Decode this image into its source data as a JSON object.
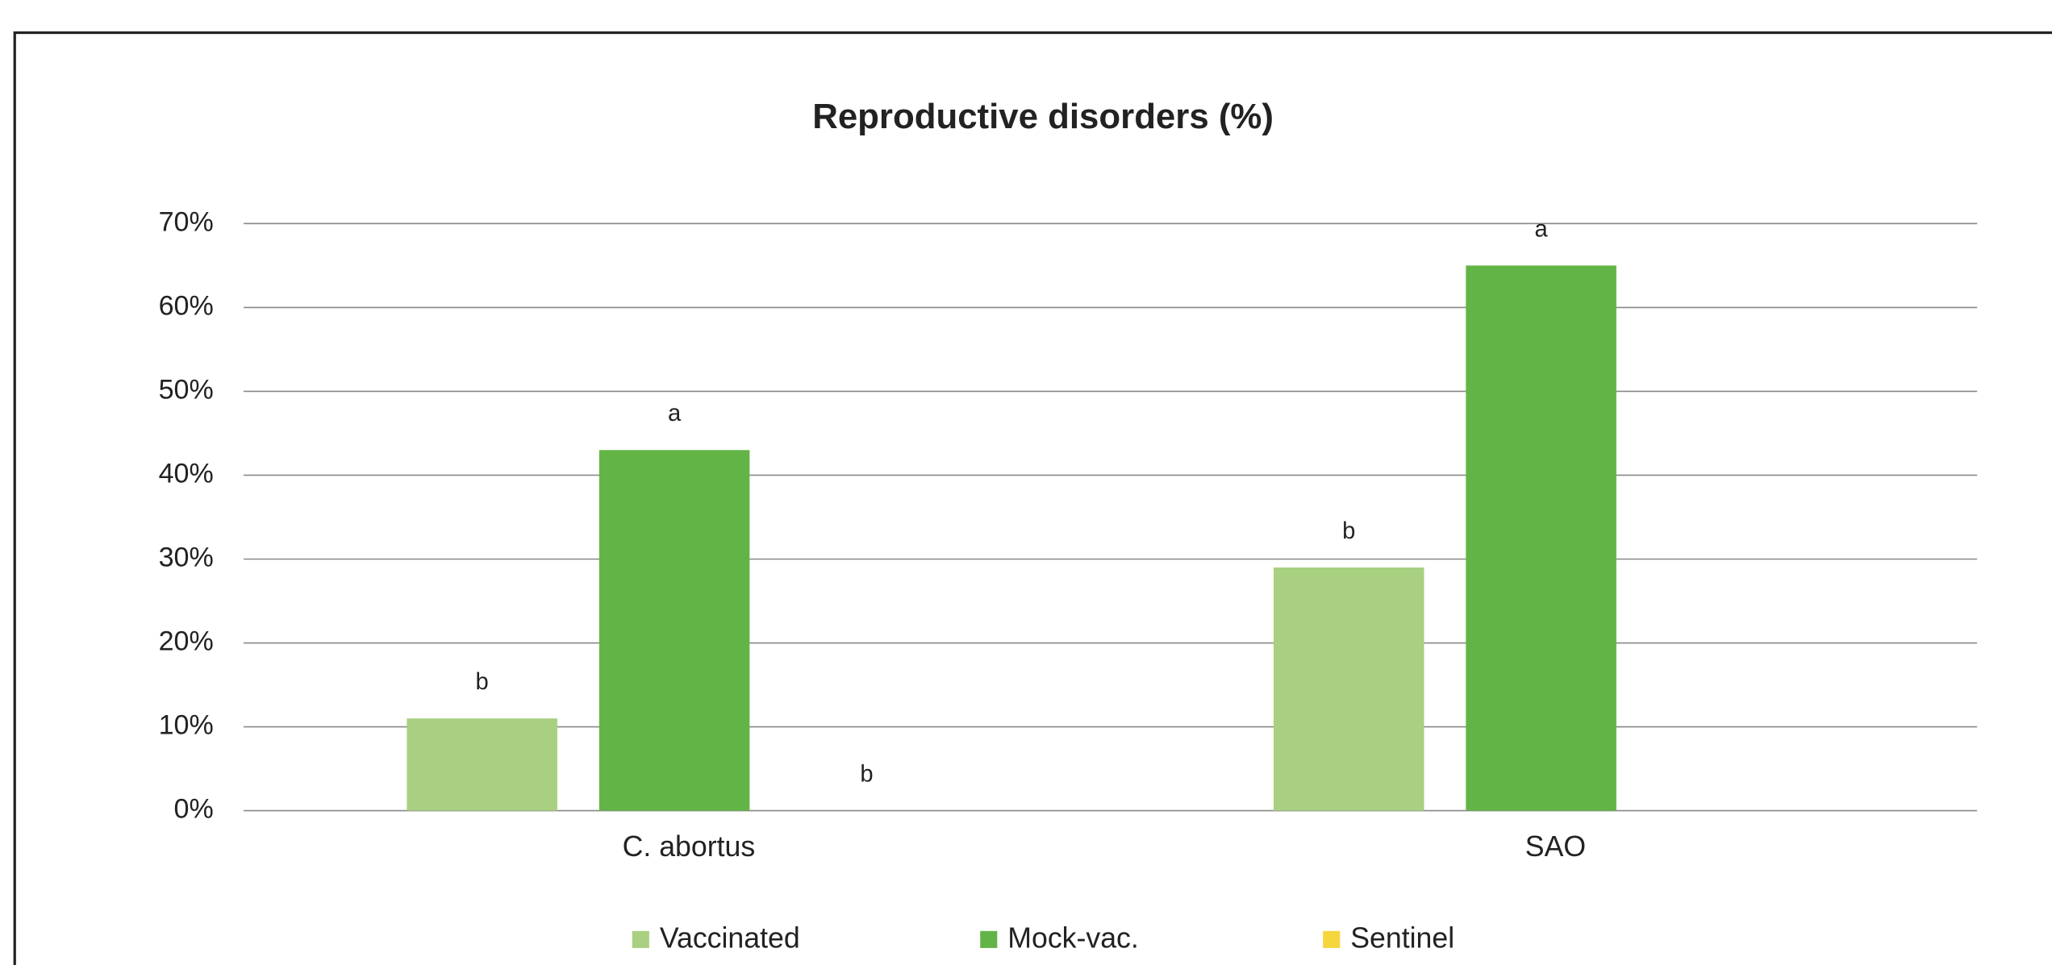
{
  "chart_data": {
    "type": "bar",
    "title": "Reproductive disorders (%)",
    "categories": [
      "C. abortus",
      "SAO"
    ],
    "series": [
      {
        "name": "Vaccinated",
        "color": "#a8d080",
        "values": [
          11,
          29
        ],
        "labels": [
          "b",
          "b"
        ]
      },
      {
        "name": "Mock-vac.",
        "color": "#63b446",
        "values": [
          43,
          65
        ],
        "labels": [
          "a",
          "a"
        ]
      },
      {
        "name": "Sentinel",
        "color": "#f5d63d",
        "values": [
          0,
          null
        ],
        "labels": [
          "b",
          null
        ]
      }
    ],
    "ylim": [
      0,
      70
    ],
    "yticks": [
      {
        "value": 0,
        "label": "0%"
      },
      {
        "value": 10,
        "label": "10%"
      },
      {
        "value": 20,
        "label": "20%"
      },
      {
        "value": 30,
        "label": "30%"
      },
      {
        "value": 40,
        "label": "40%"
      },
      {
        "value": 50,
        "label": "50%"
      },
      {
        "value": 60,
        "label": "60%"
      },
      {
        "value": 70,
        "label": "70%"
      }
    ],
    "grid": true,
    "legend": "bottom"
  }
}
